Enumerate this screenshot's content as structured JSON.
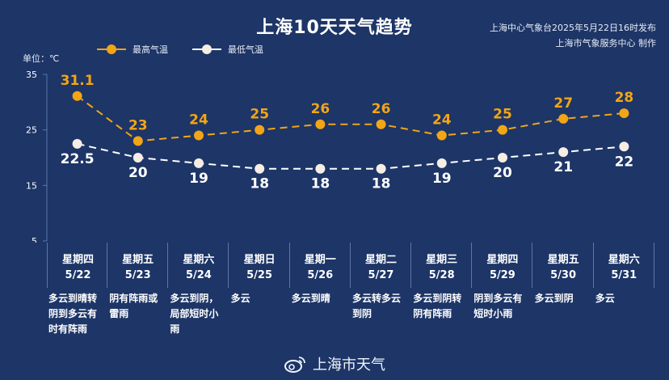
{
  "header": {
    "title": "上海10天天气趋势",
    "publish_line1": "上海中心气象台2025年5月22日16时发布",
    "publish_line2": "上海市气象服务中心 制作",
    "unit": "单位：℃"
  },
  "legend": {
    "high_label": "最高气温",
    "low_label": "最低气温"
  },
  "colors": {
    "background": "#1d3567",
    "high": "#f2a516",
    "low": "#ffffff",
    "grid": "#5b77ad"
  },
  "chart_data": {
    "type": "line",
    "categories": [
      "5/22",
      "5/23",
      "5/24",
      "5/25",
      "5/26",
      "5/27",
      "5/28",
      "5/29",
      "5/30",
      "5/31"
    ],
    "series": [
      {
        "name": "最高气温",
        "values": [
          31.1,
          23,
          24,
          25,
          26,
          26,
          24,
          25,
          27,
          28
        ],
        "labels": [
          "31.1",
          "23",
          "24",
          "25",
          "26",
          "26",
          "24",
          "25",
          "27",
          "28"
        ]
      },
      {
        "name": "最低气温",
        "values": [
          22.5,
          20,
          19,
          18,
          18,
          18,
          19,
          20,
          21,
          22
        ],
        "labels": [
          "22.5",
          "20",
          "19",
          "18",
          "18",
          "18",
          "19",
          "20",
          "21",
          "22"
        ]
      }
    ],
    "ylim": [
      5,
      35
    ],
    "yticks": [
      "35",
      "25",
      "15",
      "5"
    ],
    "ylabel": "单位：℃",
    "grid": false,
    "legend_position": "top-left",
    "line_style": "dashed"
  },
  "days": [
    {
      "weekday": "星期四",
      "date": "5/22",
      "weather": "多云到晴转\n阴到多云有\n时有阵雨"
    },
    {
      "weekday": "星期五",
      "date": "5/23",
      "weather": "阴有阵雨或\n雷雨"
    },
    {
      "weekday": "星期六",
      "date": "5/24",
      "weather": "多云到阴，\n局部短时小\n雨"
    },
    {
      "weekday": "星期日",
      "date": "5/25",
      "weather": "多云"
    },
    {
      "weekday": "星期一",
      "date": "5/26",
      "weather": "多云到晴"
    },
    {
      "weekday": "星期二",
      "date": "5/27",
      "weather": "多云转多云\n到阴"
    },
    {
      "weekday": "星期三",
      "date": "5/28",
      "weather": "多云到阴转\n阴有阵雨"
    },
    {
      "weekday": "星期四",
      "date": "5/29",
      "weather": "阴到多云有\n短时小雨"
    },
    {
      "weekday": "星期五",
      "date": "5/30",
      "weather": "多云到阴"
    },
    {
      "weekday": "星期六",
      "date": "5/31",
      "weather": "多云"
    }
  ],
  "footer": {
    "brand": "上海市天气",
    "icon": "weibo-icon"
  }
}
